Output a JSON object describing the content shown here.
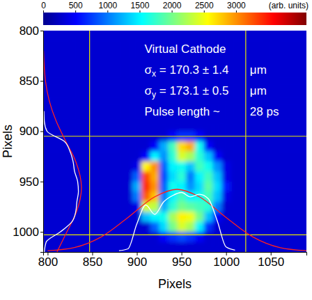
{
  "chart_data": {
    "type": "heatmap",
    "x_label": "Pixels",
    "y_label": "Pixels",
    "xlim": [
      795,
      1090
    ],
    "ylim": [
      800,
      1020
    ],
    "xticks": [
      800,
      850,
      900,
      950,
      1000,
      1050
    ],
    "yticks": [
      800,
      850,
      900,
      950,
      1000
    ],
    "colorbar": {
      "range": [
        0,
        4095
      ],
      "ticks": [
        0,
        500,
        1000,
        1500,
        2000,
        2500,
        3000
      ],
      "label": "(arb. units)"
    },
    "heatmap": {
      "x_edges": [
        795,
        805,
        815,
        825,
        835,
        845,
        855,
        865,
        875,
        885,
        895,
        905,
        915,
        925,
        935,
        945,
        955,
        965,
        975,
        985,
        995,
        1005,
        1015,
        1025,
        1035,
        1045,
        1055,
        1065,
        1075,
        1085,
        1095
      ],
      "y_edges": [
        800,
        810,
        820,
        830,
        840,
        850,
        860,
        870,
        880,
        890,
        900,
        910,
        920,
        930,
        940,
        950,
        960,
        970,
        980,
        990,
        1000,
        1010,
        1020
      ],
      "values": [
        [
          300,
          300,
          300,
          300,
          300,
          300,
          300,
          300,
          300,
          300,
          300,
          300,
          300,
          300,
          300,
          300,
          300,
          300,
          300,
          300,
          300,
          300,
          300,
          300,
          300,
          300,
          300,
          300,
          300,
          300
        ],
        [
          300,
          300,
          300,
          300,
          300,
          300,
          300,
          300,
          300,
          300,
          300,
          300,
          300,
          300,
          300,
          300,
          300,
          300,
          300,
          300,
          300,
          300,
          300,
          300,
          300,
          300,
          300,
          300,
          300,
          300
        ],
        [
          300,
          300,
          300,
          300,
          300,
          300,
          300,
          300,
          300,
          300,
          300,
          300,
          300,
          300,
          300,
          300,
          300,
          300,
          300,
          300,
          300,
          300,
          300,
          300,
          300,
          300,
          300,
          300,
          300,
          300
        ],
        [
          300,
          300,
          300,
          300,
          300,
          300,
          300,
          300,
          300,
          300,
          300,
          300,
          300,
          300,
          300,
          300,
          300,
          300,
          300,
          300,
          300,
          300,
          300,
          300,
          300,
          300,
          300,
          300,
          300,
          300
        ],
        [
          300,
          300,
          300,
          300,
          300,
          300,
          300,
          300,
          300,
          300,
          300,
          300,
          300,
          300,
          300,
          300,
          300,
          300,
          300,
          300,
          300,
          300,
          300,
          300,
          300,
          300,
          300,
          300,
          300,
          300
        ],
        [
          300,
          300,
          300,
          300,
          300,
          300,
          300,
          300,
          300,
          300,
          300,
          300,
          300,
          300,
          300,
          300,
          300,
          300,
          300,
          300,
          300,
          300,
          300,
          300,
          300,
          300,
          300,
          300,
          300,
          300
        ],
        [
          300,
          300,
          300,
          300,
          300,
          300,
          300,
          300,
          300,
          300,
          300,
          300,
          300,
          300,
          300,
          300,
          300,
          300,
          300,
          300,
          300,
          300,
          300,
          300,
          300,
          300,
          300,
          300,
          300,
          300
        ],
        [
          300,
          300,
          300,
          300,
          300,
          300,
          300,
          300,
          300,
          300,
          300,
          300,
          300,
          300,
          300,
          300,
          300,
          300,
          300,
          300,
          300,
          300,
          300,
          300,
          300,
          300,
          300,
          300,
          300,
          300
        ],
        [
          300,
          300,
          300,
          300,
          300,
          300,
          300,
          300,
          300,
          300,
          300,
          300,
          300,
          300,
          300,
          300,
          300,
          300,
          300,
          300,
          300,
          300,
          300,
          300,
          300,
          300,
          300,
          300,
          300,
          300
        ],
        [
          300,
          300,
          300,
          300,
          300,
          300,
          300,
          300,
          300,
          300,
          300,
          300,
          300,
          300,
          300,
          300,
          300,
          300,
          300,
          300,
          300,
          300,
          300,
          300,
          300,
          300,
          300,
          300,
          300,
          300
        ],
        [
          300,
          300,
          300,
          300,
          300,
          300,
          300,
          300,
          300,
          300,
          300,
          300,
          300,
          300,
          500,
          700,
          700,
          500,
          300,
          300,
          300,
          300,
          300,
          300,
          300,
          300,
          300,
          300,
          300,
          300
        ],
        [
          300,
          300,
          300,
          300,
          300,
          300,
          300,
          300,
          300,
          300,
          300,
          300,
          500,
          1200,
          1800,
          2700,
          2900,
          1600,
          500,
          300,
          300,
          300,
          300,
          300,
          300,
          300,
          300,
          300,
          300,
          300
        ],
        [
          300,
          300,
          300,
          300,
          300,
          300,
          300,
          300,
          300,
          300,
          300,
          500,
          1500,
          1100,
          1700,
          2400,
          2200,
          1700,
          1300,
          500,
          300,
          300,
          300,
          300,
          300,
          300,
          300,
          300,
          300,
          300
        ],
        [
          300,
          300,
          300,
          300,
          300,
          300,
          300,
          300,
          300,
          300,
          400,
          2600,
          3000,
          900,
          1500,
          1600,
          1300,
          1800,
          1600,
          1100,
          400,
          300,
          300,
          300,
          300,
          300,
          300,
          300,
          300,
          300
        ],
        [
          300,
          300,
          300,
          300,
          300,
          300,
          300,
          300,
          300,
          300,
          900,
          3300,
          2900,
          800,
          1400,
          1700,
          1000,
          1500,
          1800,
          1300,
          400,
          300,
          300,
          300,
          300,
          300,
          300,
          300,
          300,
          300
        ],
        [
          300,
          300,
          300,
          300,
          300,
          300,
          300,
          300,
          300,
          300,
          1200,
          3400,
          3000,
          900,
          1600,
          1500,
          1100,
          1400,
          1900,
          1400,
          600,
          300,
          300,
          300,
          300,
          300,
          300,
          300,
          300,
          300
        ],
        [
          300,
          300,
          300,
          300,
          300,
          300,
          300,
          300,
          300,
          300,
          1000,
          3200,
          2800,
          1000,
          1500,
          1800,
          1500,
          1600,
          1800,
          1300,
          400,
          300,
          300,
          300,
          300,
          300,
          300,
          300,
          300,
          300
        ],
        [
          300,
          300,
          300,
          300,
          300,
          300,
          300,
          300,
          300,
          300,
          400,
          2400,
          2300,
          1200,
          1700,
          2000,
          1900,
          1800,
          1700,
          1000,
          300,
          300,
          300,
          300,
          300,
          300,
          300,
          300,
          300,
          300
        ],
        [
          300,
          300,
          300,
          300,
          300,
          300,
          300,
          300,
          300,
          300,
          300,
          1300,
          1500,
          1600,
          2200,
          2600,
          2500,
          2000,
          1300,
          500,
          300,
          300,
          300,
          300,
          300,
          300,
          300,
          300,
          300,
          300
        ],
        [
          300,
          300,
          300,
          300,
          300,
          300,
          300,
          300,
          300,
          300,
          300,
          300,
          900,
          1400,
          2000,
          2400,
          2200,
          1500,
          700,
          300,
          300,
          300,
          300,
          300,
          300,
          300,
          300,
          300,
          300,
          300
        ],
        [
          300,
          300,
          300,
          300,
          300,
          300,
          300,
          300,
          300,
          300,
          300,
          300,
          300,
          500,
          700,
          800,
          700,
          500,
          300,
          300,
          300,
          300,
          300,
          300,
          300,
          300,
          300,
          300,
          300,
          300
        ],
        [
          300,
          300,
          300,
          300,
          300,
          300,
          300,
          300,
          300,
          300,
          300,
          300,
          300,
          300,
          300,
          300,
          300,
          300,
          300,
          300,
          300,
          300,
          300,
          300,
          300,
          300,
          300,
          300,
          300,
          300
        ]
      ]
    },
    "crosshair": {
      "x": [
        847,
        1022
      ],
      "y": [
        905,
        1003
      ],
      "color": "#e8e800"
    },
    "x_profile": {
      "x": [
        880,
        890,
        900,
        910,
        920,
        930,
        940,
        950,
        960,
        970,
        980,
        990,
        1000,
        1010
      ],
      "values": [
        0.02,
        0.05,
        0.45,
        0.75,
        0.6,
        0.8,
        0.9,
        0.95,
        0.88,
        0.92,
        0.85,
        0.5,
        0.08,
        0.03
      ],
      "color": "#ffffff"
    },
    "x_fit": {
      "x": [
        800,
        830,
        860,
        890,
        920,
        945,
        970,
        1000,
        1030,
        1060,
        1090
      ],
      "values": [
        0.02,
        0.07,
        0.24,
        0.55,
        0.88,
        1.0,
        0.88,
        0.55,
        0.24,
        0.07,
        0.02
      ],
      "color": "#ff2020"
    },
    "y_profile": {
      "y": [
        880,
        890,
        900,
        910,
        920,
        930,
        940,
        950,
        960,
        970,
        980,
        990,
        1000,
        1010,
        1020
      ],
      "values": [
        0.02,
        0.03,
        0.1,
        0.55,
        0.7,
        0.78,
        0.82,
        0.9,
        0.92,
        0.88,
        0.85,
        0.75,
        0.45,
        0.08,
        0.03
      ],
      "color": "#ffffff"
    },
    "y_fit": {
      "y": [
        820,
        850,
        870,
        890,
        910,
        930,
        956,
        980,
        1000,
        1020
      ],
      "values": [
        0.01,
        0.06,
        0.16,
        0.34,
        0.59,
        0.85,
        1.0,
        0.87,
        0.62,
        0.36
      ],
      "color": "#ff2020"
    },
    "annotations": [
      {
        "text": "Virtual Cathode"
      },
      {
        "symbol": "σ",
        "subscript": "x",
        "text": " = 170.3 ± 1.4",
        "right": "μm"
      },
      {
        "symbol": "σ",
        "subscript": "y",
        "text": " = 173.1 ± 0.5",
        "right": "μm"
      },
      {
        "text": "Pulse length ~",
        "right": "28 ps"
      }
    ]
  }
}
